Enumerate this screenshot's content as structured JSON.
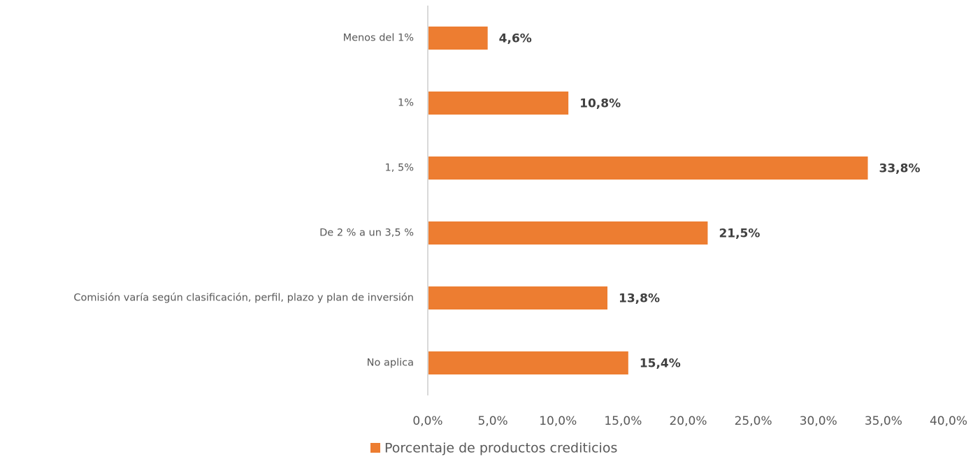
{
  "chart_data": {
    "type": "bar",
    "orientation": "horizontal",
    "categories": [
      "Menos del 1%",
      "1%",
      "1, 5%",
      "De 2 % a un 3,5 %",
      "Comisión varía según clasificación, perfil, plazo y plan de inversión",
      "No aplica"
    ],
    "series": [
      {
        "name": "Porcentaje de productos crediticios",
        "color": "#ed7d31",
        "values": [
          4.6,
          10.8,
          33.8,
          21.5,
          13.8,
          15.4
        ],
        "value_labels": [
          "4,6%",
          "10,8%",
          "33,8%",
          "21,5%",
          "13,8%",
          "15,4%"
        ]
      }
    ],
    "xlim": [
      0,
      40
    ],
    "xticks": [
      {
        "value": 0,
        "label": "0,0%"
      },
      {
        "value": 5,
        "label": "5,0%"
      },
      {
        "value": 10,
        "label": "10,0%"
      },
      {
        "value": 15,
        "label": "15,0%"
      },
      {
        "value": 20,
        "label": "20,0%"
      },
      {
        "value": 25,
        "label": "25,0%"
      },
      {
        "value": 30,
        "label": "30,0%"
      },
      {
        "value": 35,
        "label": "35,0%"
      },
      {
        "value": 40,
        "label": "40,0%"
      }
    ],
    "grid": false,
    "legend": "bottom"
  }
}
